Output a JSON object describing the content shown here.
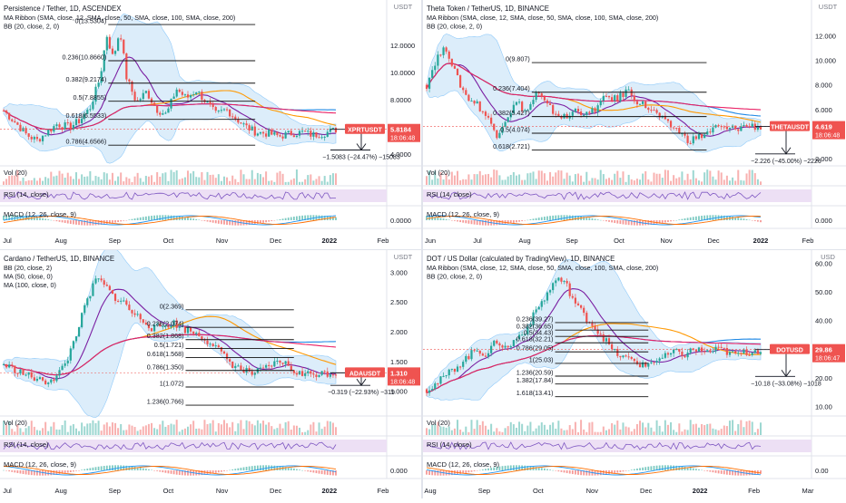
{
  "panels": [
    {
      "title": "Persistence / Tether, 1D, ASCENDEX",
      "subtitles": [
        "MA Ribbon (SMA, close, 12, SMA, close, 50, SMA, close, 100, SMA, close, 200)",
        "BB (20, close, 2, 0)"
      ],
      "currency": "USDT",
      "price_ticks": [
        {
          "v": 12,
          "t": "12.0000"
        },
        {
          "v": 10,
          "t": "10.0000"
        },
        {
          "v": 8,
          "t": "8.0000"
        },
        {
          "v": 6,
          "t": "6.0000"
        },
        {
          "v": 4,
          "t": "4.0000"
        }
      ],
      "price_range": [
        3.2,
        14.8
      ],
      "months": [
        "Jul",
        "Aug",
        "Sep",
        "Oct",
        "Nov",
        "Dec",
        "2022",
        "Feb"
      ],
      "fib": [
        {
          "t": "0(13.5304)",
          "v": 13.5304
        },
        {
          "t": "0.236(10.8660)",
          "v": 10.866
        },
        {
          "t": "0.382(9.2174)",
          "v": 9.2174
        },
        {
          "t": "0.5(7.8855)",
          "v": 7.8855
        },
        {
          "t": "0.618(6.5533)",
          "v": 6.5533
        },
        {
          "t": "0.786(4.6566)",
          "v": 4.6566
        }
      ],
      "fib_span": [
        0.28,
        0.66
      ],
      "start": 7.2,
      "path": [
        [
          0,
          7.2
        ],
        [
          0.04,
          6.2
        ],
        [
          0.07,
          5.4
        ],
        [
          0.1,
          5.0
        ],
        [
          0.13,
          5.6
        ],
        [
          0.16,
          6.2
        ],
        [
          0.2,
          6.0
        ],
        [
          0.23,
          6.5
        ],
        [
          0.26,
          7.4
        ],
        [
          0.29,
          9.6
        ],
        [
          0.31,
          12.8
        ],
        [
          0.33,
          11.0
        ],
        [
          0.35,
          13.2
        ],
        [
          0.37,
          9.6
        ],
        [
          0.4,
          7.8
        ],
        [
          0.43,
          8.6
        ],
        [
          0.46,
          7.3
        ],
        [
          0.49,
          6.9
        ],
        [
          0.52,
          8.8
        ],
        [
          0.55,
          8.1
        ],
        [
          0.58,
          8.7
        ],
        [
          0.61,
          7.8
        ],
        [
          0.64,
          6.9
        ],
        [
          0.67,
          7.3
        ],
        [
          0.7,
          6.6
        ],
        [
          0.73,
          6.0
        ],
        [
          0.76,
          5.6
        ],
        [
          0.8,
          5.5
        ],
        [
          0.83,
          5.3
        ],
        [
          0.86,
          5.5
        ],
        [
          0.9,
          5.6
        ],
        [
          0.93,
          5.4
        ],
        [
          0.96,
          5.5
        ],
        [
          1.0,
          5.8
        ]
      ],
      "target_line": 4.3,
      "measure": "−1.5083 (−24.47%) −15083",
      "price_badge": "XPRTUSDT",
      "price_value": "5.8184",
      "price": 5.8184,
      "countdown": "18:06:48",
      "vol_label": "Vol (20)",
      "rsi_label": "RSI (14, close)",
      "macd_label": "MACD (12, 26, close, 9)",
      "macd_tick": "0.0000"
    },
    {
      "title": "Theta Token / TetherUS, 1D, BINANCE",
      "subtitles": [
        "MA Ribbon (SMA, close, 12, SMA, close, 50, SMA, close, 100, SMA, close, 200)",
        "BB (20, close, 2, 0)"
      ],
      "currency": "USDT",
      "price_ticks": [
        {
          "v": 12,
          "t": "12.000"
        },
        {
          "v": 10,
          "t": "10.000"
        },
        {
          "v": 8,
          "t": "8.000"
        },
        {
          "v": 6,
          "t": "6.000"
        },
        {
          "v": 4,
          "t": "4.000"
        },
        {
          "v": 2,
          "t": "2.000"
        }
      ],
      "price_range": [
        1.5,
        14.3
      ],
      "months": [
        "Jun",
        "Jul",
        "Aug",
        "Sep",
        "Oct",
        "Nov",
        "Dec",
        "2022",
        "Feb"
      ],
      "fib": [
        {
          "t": "0(9.807)",
          "v": 9.807
        },
        {
          "t": "0.236(7.404)",
          "v": 7.404
        },
        {
          "t": "0.382(5.427)",
          "v": 5.427
        },
        {
          "t": "0.5(4.074)",
          "v": 4.074
        },
        {
          "t": "0.618(2.721)",
          "v": 2.721
        }
      ],
      "fib_span": [
        0.28,
        0.73
      ],
      "start": 8.0,
      "path": [
        [
          0,
          8.0
        ],
        [
          0.03,
          10.2
        ],
        [
          0.06,
          11.0
        ],
        [
          0.09,
          8.6
        ],
        [
          0.12,
          7.0
        ],
        [
          0.15,
          6.5
        ],
        [
          0.18,
          5.4
        ],
        [
          0.21,
          4.0
        ],
        [
          0.24,
          5.4
        ],
        [
          0.27,
          6.6
        ],
        [
          0.3,
          5.8
        ],
        [
          0.33,
          7.4
        ],
        [
          0.36,
          6.3
        ],
        [
          0.39,
          5.6
        ],
        [
          0.42,
          5.3
        ],
        [
          0.45,
          6.1
        ],
        [
          0.48,
          5.5
        ],
        [
          0.51,
          6.2
        ],
        [
          0.54,
          7.1
        ],
        [
          0.57,
          6.8
        ],
        [
          0.6,
          7.6
        ],
        [
          0.63,
          6.7
        ],
        [
          0.66,
          6.2
        ],
        [
          0.69,
          5.6
        ],
        [
          0.72,
          4.8
        ],
        [
          0.75,
          4.4
        ],
        [
          0.78,
          3.5
        ],
        [
          0.81,
          3.7
        ],
        [
          0.84,
          4.1
        ],
        [
          0.87,
          4.6
        ],
        [
          0.9,
          4.4
        ],
        [
          0.93,
          4.5
        ],
        [
          0.96,
          4.7
        ],
        [
          1.0,
          4.6
        ]
      ],
      "target_line": 2.4,
      "measure": "−2.226 (−45.00%) −2226",
      "price_badge": "THETAUSDT",
      "price_value": "4.619",
      "price": 4.619,
      "countdown": "18:06:48",
      "vol_label": "Vol (20)",
      "rsi_label": "RSI (14, close)",
      "macd_label": "MACD (12, 26, close, 9)",
      "macd_tick": "0.000"
    },
    {
      "title": "Cardano / TetherUS, 1D, BINANCE",
      "subtitles": [
        "BB (20, close, 2)",
        "MA (50, close, 0)",
        "MA (100, close, 0)"
      ],
      "currency": "USDT",
      "price_ticks": [
        {
          "v": 3.0,
          "t": "3.000"
        },
        {
          "v": 2.5,
          "t": "2.500"
        },
        {
          "v": 2.0,
          "t": "2.000"
        },
        {
          "v": 1.5,
          "t": "1.500"
        },
        {
          "v": 1.0,
          "t": "1.000"
        }
      ],
      "price_range": [
        0.6,
        3.25
      ],
      "months": [
        "Jul",
        "Aug",
        "Sep",
        "Oct",
        "Nov",
        "Dec",
        "2022",
        "Feb"
      ],
      "fib": [
        {
          "t": "0(2.369)",
          "v": 2.369
        },
        {
          "t": "0.236(2.074)",
          "v": 2.074
        },
        {
          "t": "0.382(1.868)",
          "v": 1.868
        },
        {
          "t": "0.5(1.721)",
          "v": 1.721
        },
        {
          "t": "0.618(1.568)",
          "v": 1.568
        },
        {
          "t": "0.786(1.350)",
          "v": 1.35
        },
        {
          "t": "1(1.072)",
          "v": 1.072
        },
        {
          "t": "1.236(0.766)",
          "v": 0.766
        }
      ],
      "fib_span": [
        0.48,
        0.76
      ],
      "start": 1.45,
      "path": [
        [
          0,
          1.45
        ],
        [
          0.04,
          1.35
        ],
        [
          0.08,
          1.25
        ],
        [
          0.12,
          1.15
        ],
        [
          0.16,
          1.25
        ],
        [
          0.19,
          1.5
        ],
        [
          0.22,
          2.0
        ],
        [
          0.25,
          2.5
        ],
        [
          0.28,
          2.9
        ],
        [
          0.3,
          2.8
        ],
        [
          0.33,
          2.6
        ],
        [
          0.36,
          2.5
        ],
        [
          0.39,
          2.3
        ],
        [
          0.42,
          2.2
        ],
        [
          0.45,
          2.05
        ],
        [
          0.48,
          2.1
        ],
        [
          0.51,
          2.15
        ],
        [
          0.54,
          2.05
        ],
        [
          0.57,
          2.0
        ],
        [
          0.6,
          1.9
        ],
        [
          0.63,
          1.8
        ],
        [
          0.66,
          1.6
        ],
        [
          0.69,
          1.45
        ],
        [
          0.72,
          1.35
        ],
        [
          0.75,
          1.3
        ],
        [
          0.78,
          1.35
        ],
        [
          0.81,
          1.45
        ],
        [
          0.84,
          1.5
        ],
        [
          0.87,
          1.35
        ],
        [
          0.9,
          1.28
        ],
        [
          0.94,
          1.3
        ],
        [
          1.0,
          1.31
        ]
      ],
      "target_line": 1.1,
      "measure": "−0.319 (−22.93%) −319",
      "price_badge": "ADAUSDT",
      "price_value": "1.310",
      "price": 1.31,
      "countdown": "18:06:48",
      "vol_label": "Vol (20)",
      "rsi_label": "RSI (14, close)",
      "macd_label": "MACD (12, 26, close, 9)",
      "macd_tick": "0.000"
    },
    {
      "title": "DOT / US Dollar (calculated by TradingView), 1D, BINANCE",
      "subtitles": [
        "MA Ribbon (SMA, close, 12, SMA, close, 50, SMA, close, 100, SMA, close, 200)",
        "BB (20, close, 2, 0)"
      ],
      "currency": "USD",
      "price_ticks": [
        {
          "v": 60,
          "t": "60.00"
        },
        {
          "v": 50,
          "t": "50.00"
        },
        {
          "v": 40,
          "t": "40.00"
        },
        {
          "v": 30,
          "t": "30.00"
        },
        {
          "v": 20,
          "t": "20.00"
        },
        {
          "v": 10,
          "t": "10.00"
        }
      ],
      "price_range": [
        7,
        62
      ],
      "months": [
        "Aug",
        "Sep",
        "Oct",
        "Nov",
        "Dec",
        "2022",
        "Feb",
        "Mar"
      ],
      "fib": [
        {
          "t": "0.236(39.27)",
          "v": 39.27
        },
        {
          "t": "0.382(36.65)",
          "v": 36.65
        },
        {
          "t": "0.5(34.43)",
          "v": 34.43
        },
        {
          "t": "0.618(32.21)",
          "v": 32.21
        },
        {
          "t": "0.786(29.05)",
          "v": 29.05
        },
        {
          "t": "1(25.03)",
          "v": 25.03
        },
        {
          "t": "1.236(20.59)",
          "v": 20.59
        },
        {
          "t": "1.382(17.84)",
          "v": 17.84
        },
        {
          "t": "1.618(13.41)",
          "v": 13.41
        }
      ],
      "fib_span": [
        0.34,
        0.58
      ],
      "start": 16,
      "path": [
        [
          0,
          16
        ],
        [
          0.03,
          18
        ],
        [
          0.06,
          21
        ],
        [
          0.09,
          24
        ],
        [
          0.12,
          27
        ],
        [
          0.15,
          30
        ],
        [
          0.18,
          28
        ],
        [
          0.21,
          33
        ],
        [
          0.24,
          30
        ],
        [
          0.27,
          34
        ],
        [
          0.3,
          37
        ],
        [
          0.33,
          44
        ],
        [
          0.36,
          49
        ],
        [
          0.39,
          55
        ],
        [
          0.42,
          52
        ],
        [
          0.44,
          47
        ],
        [
          0.47,
          42
        ],
        [
          0.5,
          38
        ],
        [
          0.53,
          34
        ],
        [
          0.56,
          29
        ],
        [
          0.59,
          27
        ],
        [
          0.62,
          26
        ],
        [
          0.65,
          24
        ],
        [
          0.68,
          26
        ],
        [
          0.71,
          27
        ],
        [
          0.74,
          29
        ],
        [
          0.77,
          28
        ],
        [
          0.8,
          30
        ],
        [
          0.84,
          29
        ],
        [
          0.88,
          30
        ],
        [
          0.92,
          28
        ],
        [
          0.96,
          29
        ],
        [
          1.0,
          29.86
        ]
      ],
      "target_line": 20.5,
      "measure": "−10.18 (−33.08%) −1018",
      "price_badge": "DOTUSD",
      "price_value": "29.86",
      "price": 29.86,
      "countdown": "18:06:47",
      "vol_label": "Vol (20)",
      "rsi_label": "RSI (14, close)",
      "macd_label": "MACD (12, 26, close, 9)",
      "macd_tick": "0.00"
    }
  ],
  "colors": {
    "up": "#26a69a",
    "down": "#ef5350",
    "ma_fast": "#7b1fa2",
    "ma_mid": "#ff9800",
    "ma_slow": "#1e88e5",
    "ma_long": "#e91e63",
    "bb_fill": "#c9e4f7",
    "fib": "#111111",
    "rsi_bg": "#ede0f5",
    "rsi_line": "#7e57c2",
    "macd_line": "#2196f3",
    "macd_signal": "#ff6d00",
    "badge": "#ef5350"
  }
}
